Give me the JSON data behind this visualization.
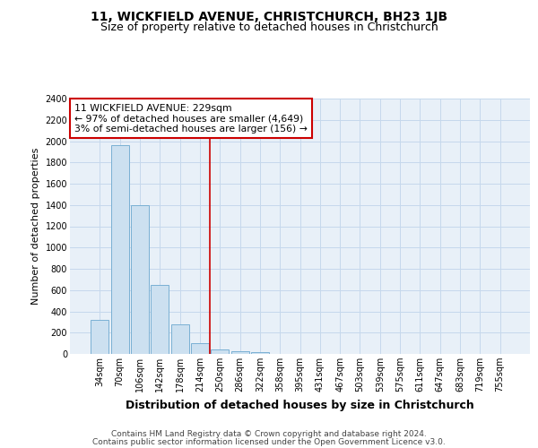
{
  "title1": "11, WICKFIELD AVENUE, CHRISTCHURCH, BH23 1JB",
  "title2": "Size of property relative to detached houses in Christchurch",
  "xlabel": "Distribution of detached houses by size in Christchurch",
  "ylabel": "Number of detached properties",
  "footer1": "Contains HM Land Registry data © Crown copyright and database right 2024.",
  "footer2": "Contains public sector information licensed under the Open Government Licence v3.0.",
  "annotation_line1": "11 WICKFIELD AVENUE: 229sqm",
  "annotation_line2": "← 97% of detached houses are smaller (4,649)",
  "annotation_line3": "3% of semi-detached houses are larger (156) →",
  "bar_labels": [
    "34sqm",
    "70sqm",
    "106sqm",
    "142sqm",
    "178sqm",
    "214sqm",
    "250sqm",
    "286sqm",
    "322sqm",
    "358sqm",
    "395sqm",
    "431sqm",
    "467sqm",
    "503sqm",
    "539sqm",
    "575sqm",
    "611sqm",
    "647sqm",
    "683sqm",
    "719sqm",
    "755sqm"
  ],
  "bar_values": [
    320,
    1960,
    1400,
    650,
    280,
    100,
    40,
    25,
    15,
    0,
    0,
    0,
    0,
    0,
    0,
    0,
    0,
    0,
    0,
    0,
    0
  ],
  "bar_color": "#cce0f0",
  "bar_edge_color": "#7ab0d4",
  "bg_color": "#e8f0f8",
  "grid_color": "#c5d8ec",
  "vline_x": 5.5,
  "vline_color": "#cc0000",
  "ylim": [
    0,
    2400
  ],
  "yticks": [
    0,
    200,
    400,
    600,
    800,
    1000,
    1200,
    1400,
    1600,
    1800,
    2000,
    2200,
    2400
  ],
  "title1_fontsize": 10,
  "title2_fontsize": 9,
  "ylabel_fontsize": 8,
  "xlabel_fontsize": 9,
  "tick_fontsize": 7,
  "footer_fontsize": 6.5
}
